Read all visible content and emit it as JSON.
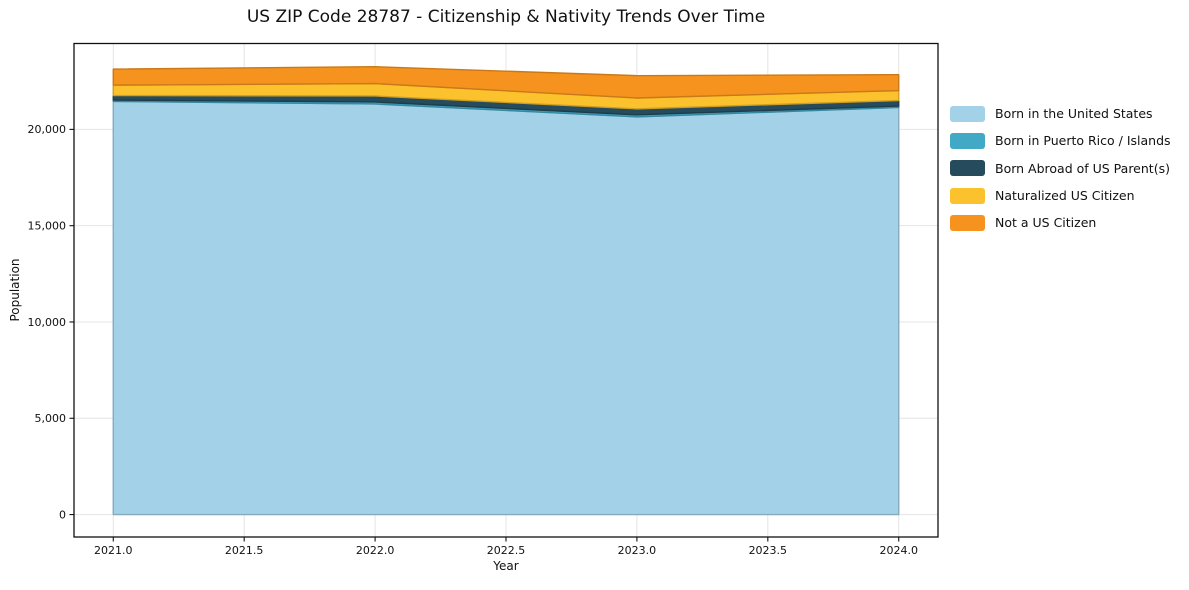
{
  "chart_data": {
    "type": "area",
    "stacked": true,
    "title": "US ZIP Code 28787 - Citizenship & Nativity Trends Over Time",
    "xlabel": "Year",
    "ylabel": "Population",
    "x": [
      2021,
      2022,
      2023,
      2024
    ],
    "series": [
      {
        "name": "Born in the United States",
        "color": "#a3d1e8",
        "values": [
          21450,
          21320,
          20650,
          21140
        ]
      },
      {
        "name": "Born in Puerto Rico / Islands",
        "color": "#41a8c6",
        "values": [
          75,
          105,
          105,
          75
        ]
      },
      {
        "name": "Born Abroad of US Parent(s)",
        "color": "#254b5c",
        "values": [
          235,
          310,
          310,
          285
        ]
      },
      {
        "name": "Naturalized US Citizen",
        "color": "#fcc22d",
        "values": [
          540,
          645,
          565,
          515
        ]
      },
      {
        "name": "Not a US Citizen",
        "color": "#f6931e",
        "values": [
          830,
          875,
          1160,
          825
        ]
      }
    ],
    "totals": [
      23130,
      23255,
      22790,
      22840
    ],
    "xticks": {
      "values": [
        2021.0,
        2021.5,
        2022.0,
        2022.5,
        2023.0,
        2023.5,
        2024.0
      ],
      "labels": [
        "2021.0",
        "2021.5",
        "2022.0",
        "2022.5",
        "2023.0",
        "2023.5",
        "2024.0"
      ]
    },
    "yticks": {
      "values": [
        0,
        5000,
        10000,
        15000,
        20000
      ],
      "labels": [
        "0",
        "5,000",
        "10,000",
        "15,000",
        "20,000"
      ]
    },
    "xlim": [
      2020.85,
      2024.15
    ],
    "ylim": [
      -1165,
      24460
    ],
    "grid": true,
    "grid_color": "#e4e4e4",
    "axis_color": "#111111",
    "background": "#ffffff",
    "legend_position": "right"
  }
}
